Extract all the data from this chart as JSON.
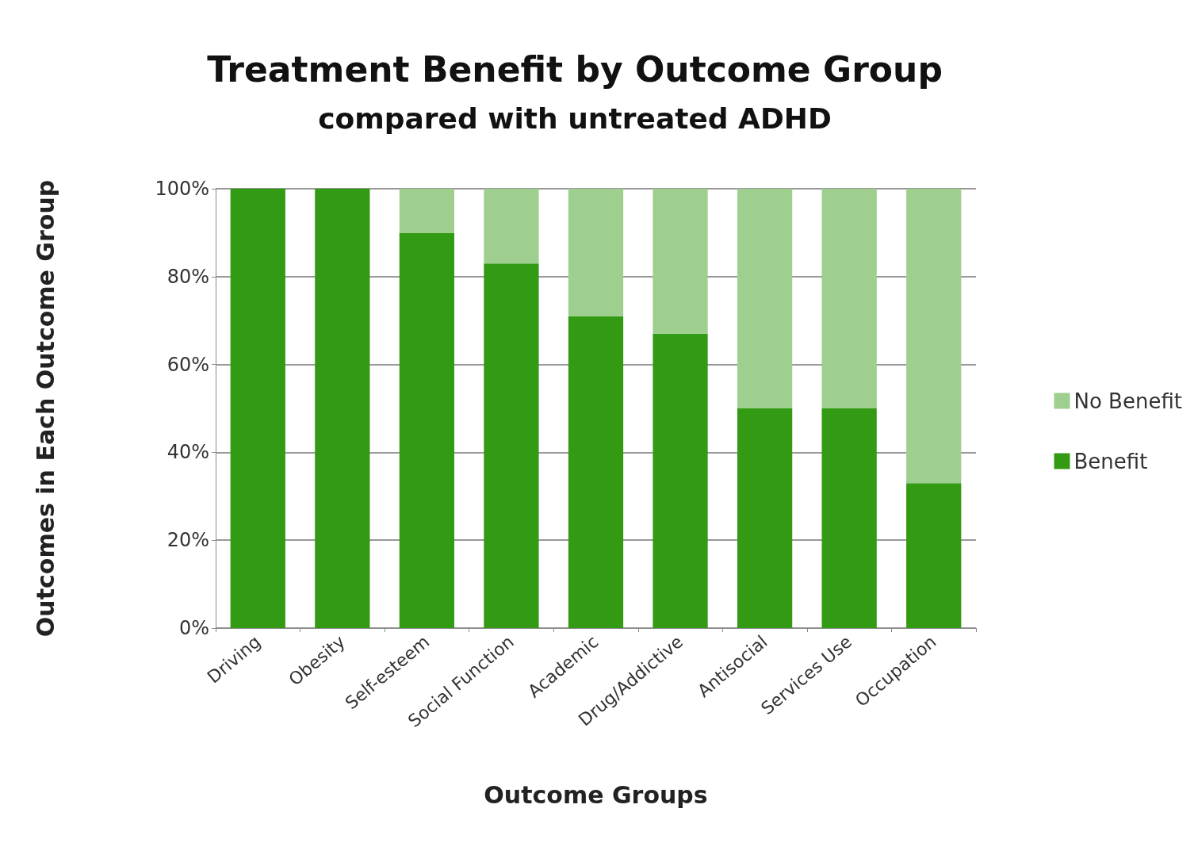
{
  "chart_data": {
    "type": "bar",
    "title": "Treatment Benefit by Outcome Group",
    "subtitle": "compared with untreated ADHD",
    "xlabel": "Outcome Groups",
    "ylabel": "Outcomes in Each Outcome Group",
    "categories": [
      "Driving",
      "Obesity",
      "Self-esteem",
      "Social Function",
      "Academic",
      "Drug/Addictive",
      "Antisocial",
      "Services Use",
      "Occupation"
    ],
    "stacked": true,
    "series": [
      {
        "name": "Benefit",
        "color": "#339a14",
        "values": [
          100,
          100,
          90,
          83,
          71,
          67,
          50,
          50,
          33
        ]
      },
      {
        "name": "No Benefit",
        "color": "#9fcf8f",
        "values": [
          0,
          0,
          10,
          17,
          29,
          33,
          50,
          50,
          67
        ]
      }
    ],
    "ylim": [
      0,
      100
    ],
    "yticks": [
      {
        "value": 0,
        "label": "0%"
      },
      {
        "value": 20,
        "label": "20%"
      },
      {
        "value": 40,
        "label": "40%"
      },
      {
        "value": 60,
        "label": "60%"
      },
      {
        "value": 80,
        "label": "80%"
      },
      {
        "value": 100,
        "label": "100%"
      }
    ],
    "grid": "y",
    "legend": "right"
  }
}
